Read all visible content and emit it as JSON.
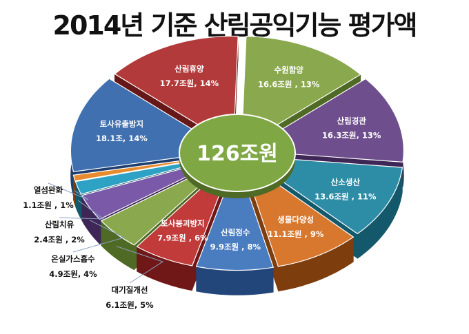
{
  "chart_data": {
    "type": "pie",
    "title": "2014년 기준 산림공익기능 평가액",
    "total_label": "126조원",
    "slices": [
      {
        "name": "수원함양",
        "value": 16.6,
        "value_label": "16.6조원 , 13%",
        "percent": 13,
        "color": "#8aa84e",
        "dark": "#4f6a24",
        "label_style": "inside"
      },
      {
        "name": "산림경관",
        "value": 16.3,
        "value_label": "16.3조원, 13%",
        "percent": 13,
        "color": "#6e4e8c",
        "dark": "#3e2656",
        "label_style": "inside"
      },
      {
        "name": "산소생산",
        "value": 13.6,
        "value_label": "13.6조원 , 11%",
        "percent": 11,
        "color": "#2e8da6",
        "dark": "#14596b",
        "label_style": "inside"
      },
      {
        "name": "생물다양성",
        "value": 11.1,
        "value_label": "11.1조원 , 9%",
        "percent": 9,
        "color": "#d8782e",
        "dark": "#7e3d0c",
        "label_style": "inside"
      },
      {
        "name": "산림정수",
        "value": 9.9,
        "value_label": "9.9조원 , 8%",
        "percent": 8,
        "color": "#4a7cc0",
        "dark": "#22467a",
        "label_style": "inside"
      },
      {
        "name": "토사붕괴방지",
        "value": 7.9,
        "value_label": "7.9조원 , 6%",
        "percent": 6,
        "color": "#c23b3b",
        "dark": "#701818",
        "label_style": "inside"
      },
      {
        "name": "대기질개선",
        "value": 6.1,
        "value_label": "6.1조원, 5%",
        "percent": 5,
        "color": "#8aa84e",
        "dark": "#4f6a24",
        "label_style": "outside"
      },
      {
        "name": "온실가스흡수",
        "value": 4.9,
        "value_label": "4.9조원, 4%",
        "percent": 4,
        "color": "#7a5aa8",
        "dark": "#3e2656",
        "label_style": "outside"
      },
      {
        "name": "산림치유",
        "value": 2.4,
        "value_label": "2.4조원 , 2%",
        "percent": 2,
        "color": "#2ea2c4",
        "dark": "#14596b",
        "label_style": "outside"
      },
      {
        "name": "열섬완화",
        "value": 1.1,
        "value_label": "1.1조원 , 1%",
        "percent": 1,
        "color": "#e88a2e",
        "dark": "#7e3d0c",
        "label_style": "outside"
      },
      {
        "name": "토사유출방지",
        "value": 18.1,
        "value_label": "18.1조, 14%",
        "percent": 14,
        "color": "#4070b0",
        "dark": "#1e3e6e",
        "label_style": "inside"
      },
      {
        "name": "산림휴양",
        "value": 17.7,
        "value_label": "17.7조원, 14%",
        "percent": 14,
        "color": "#b23a3a",
        "dark": "#661818",
        "label_style": "inside"
      }
    ],
    "center_color": "#7fa845"
  }
}
